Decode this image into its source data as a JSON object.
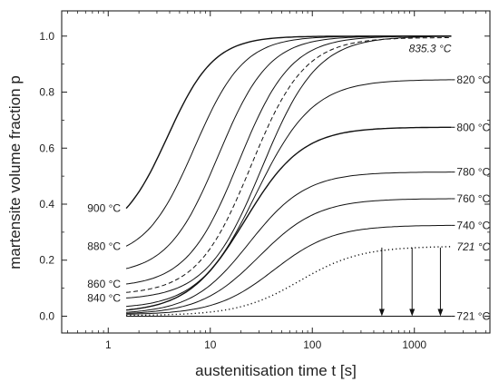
{
  "chart_data": {
    "type": "line",
    "title": "",
    "xlabel": "austenitisation time  t [s]",
    "ylabel": "martensite volume fraction  p",
    "xscale": "log",
    "xlim": [
      0.35,
      5500
    ],
    "ylim": [
      -0.06,
      1.09
    ],
    "x_ticks": [
      1,
      10,
      100,
      1000
    ],
    "x_tick_labels": [
      "1",
      "10",
      "100",
      "1000"
    ],
    "y_ticks": [
      0.0,
      0.2,
      0.4,
      0.6,
      0.8,
      1.0
    ],
    "y_tick_labels": [
      "0.0",
      "0.2",
      "0.4",
      "0.6",
      "0.8",
      "1.0"
    ],
    "grid": false,
    "series": [
      {
        "name": "900 °C",
        "label_side": "left",
        "style": "solid",
        "t_start": 1.5,
        "t_end": 2300,
        "p_start": 0.385,
        "p_max": 1.0,
        "t_half": 3.8,
        "k": 1.9
      },
      {
        "name": "880 °C",
        "label_side": "left",
        "style": "solid",
        "t_start": 1.5,
        "t_end": 2300,
        "p_start": 0.25,
        "p_max": 1.0,
        "t_half": 7.0,
        "k": 1.8
      },
      {
        "name": "",
        "label_side": "none",
        "style": "solid",
        "t_start": 1.5,
        "t_end": 2300,
        "p_start": 0.17,
        "p_max": 1.0,
        "t_half": 12.0,
        "k": 1.75
      },
      {
        "name": "860 °C",
        "label_side": "left",
        "style": "solid",
        "t_start": 1.5,
        "t_end": 2300,
        "p_start": 0.115,
        "p_max": 1.0,
        "t_half": 19.0,
        "k": 1.7
      },
      {
        "name": "835.3 °C",
        "label_side": "right-inner",
        "style": "dashed",
        "t_start": 1.5,
        "t_end": 2300,
        "p_start": 0.085,
        "p_max": 0.995,
        "t_half": 25.0,
        "k": 1.65
      },
      {
        "name": "840 °C",
        "label_side": "left",
        "style": "solid",
        "t_start": 1.5,
        "t_end": 2300,
        "p_start": 0.065,
        "p_max": 1.0,
        "t_half": 32.0,
        "k": 1.6
      },
      {
        "name": "820 °C",
        "label_side": "right",
        "style": "solid",
        "t_start": 1.5,
        "t_end": 2300,
        "p_start": 0.035,
        "p_max": 0.845,
        "t_half": 28.0,
        "k": 1.55
      },
      {
        "name": "800 °C",
        "label_side": "right",
        "style": "solid",
        "t_start": 1.5,
        "t_end": 2300,
        "p_start": 0.022,
        "p_max": 0.675,
        "t_half": 22.0,
        "k": 1.55
      },
      {
        "name": "780 °C",
        "label_side": "right",
        "style": "solid",
        "t_start": 1.5,
        "t_end": 2300,
        "p_start": 0.014,
        "p_max": 0.515,
        "t_half": 24.0,
        "k": 1.55
      },
      {
        "name": "760 °C",
        "label_side": "right",
        "style": "solid",
        "t_start": 1.5,
        "t_end": 2300,
        "p_start": 0.01,
        "p_max": 0.42,
        "t_half": 30.0,
        "k": 1.5
      },
      {
        "name": "740 °C",
        "label_side": "right",
        "style": "solid",
        "t_start": 1.5,
        "t_end": 2300,
        "p_start": 0.007,
        "p_max": 0.325,
        "t_half": 42.0,
        "k": 1.5
      },
      {
        "name": "721 °C",
        "label_side": "right-italic",
        "style": "dotted",
        "t_start": 1.5,
        "t_end": 2300,
        "p_start": 0.003,
        "p_max": 0.25,
        "t_half": 75.0,
        "k": 1.45
      },
      {
        "name": "721 °C",
        "label_side": "right",
        "style": "solid-flat",
        "t_start": 1.5,
        "t_end": 2300,
        "p_start": 0.0,
        "p_max": 0.0,
        "t_half": 1.0,
        "k": 1.0
      }
    ],
    "arrows": [
      {
        "t": 480,
        "p_from": 0.245,
        "p_to": 0.0
      },
      {
        "t": 950,
        "p_from": 0.245,
        "p_to": 0.0
      },
      {
        "t": 1800,
        "p_from": 0.245,
        "p_to": 0.0
      }
    ]
  }
}
